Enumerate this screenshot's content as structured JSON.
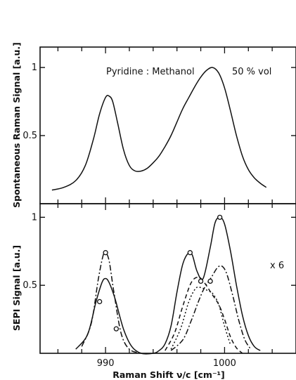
{
  "chart_data": [
    {
      "type": "line",
      "ylabel": "Spontaneous Raman Signal [a.u.]",
      "annotation": "Pyridine : Methanol",
      "annotation2": "50 % vol",
      "xlim": [
        984.5,
        1006
      ],
      "ylim": [
        0.0,
        1.15
      ],
      "yticks": [
        0.5,
        1
      ],
      "ytick_labels": [
        "0.5",
        "1"
      ],
      "series": [
        {
          "style": "solid",
          "x": [
            985.5,
            986.5,
            987.5,
            988.3,
            989.0,
            989.5,
            990.0,
            990.3,
            990.6,
            991.0,
            991.5,
            992.0,
            992.5,
            993.0,
            993.5,
            994.0,
            994.5,
            995.0,
            995.5,
            996.0,
            996.5,
            997.0,
            997.5,
            998.0,
            998.5,
            999.0,
            999.5,
            1000.0,
            1000.5,
            1001.0,
            1001.5,
            1002.0,
            1002.5,
            1003.0,
            1003.5
          ],
          "y": [
            0.1,
            0.12,
            0.17,
            0.28,
            0.48,
            0.66,
            0.78,
            0.79,
            0.75,
            0.6,
            0.4,
            0.28,
            0.24,
            0.24,
            0.26,
            0.3,
            0.35,
            0.42,
            0.5,
            0.6,
            0.7,
            0.78,
            0.86,
            0.93,
            0.98,
            1.0,
            0.96,
            0.85,
            0.68,
            0.5,
            0.35,
            0.25,
            0.19,
            0.15,
            0.12
          ]
        }
      ]
    },
    {
      "type": "line",
      "xlabel": "Raman Shift  ν/c  [cm⁻¹]",
      "ylabel": "SEPI Signal [a.u.]",
      "annotation": "x 6",
      "xlim": [
        984.5,
        1006
      ],
      "ylim": [
        0.0,
        1.1
      ],
      "xticks": [
        990,
        1000
      ],
      "xtick_labels": [
        "990",
        "1000"
      ],
      "yticks": [
        0.5,
        1
      ],
      "ytick_labels": [
        "0.5",
        "1"
      ],
      "series": [
        {
          "style": "solid",
          "x": [
            987.5,
            988.5,
            989.2,
            989.7,
            990.0,
            990.3,
            990.8,
            991.5,
            992.2,
            993.0,
            994.0,
            994.5,
            995.0,
            995.5,
            996.0,
            996.5,
            997.0,
            997.3,
            997.7,
            998.2,
            998.8,
            999.2,
            999.6,
            1000.0,
            1000.5,
            1001.0,
            1001.5,
            1002.0,
            1002.5,
            1003.0
          ],
          "y": [
            0.03,
            0.14,
            0.38,
            0.52,
            0.55,
            0.52,
            0.4,
            0.18,
            0.05,
            0.0,
            0.0,
            0.02,
            0.07,
            0.2,
            0.45,
            0.66,
            0.74,
            0.72,
            0.6,
            0.55,
            0.78,
            0.96,
            1.0,
            0.95,
            0.75,
            0.5,
            0.28,
            0.13,
            0.05,
            0.02
          ]
        },
        {
          "style": "dashdot",
          "x": [
            988.0,
            988.8,
            989.4,
            989.8,
            990.0,
            990.3,
            990.7,
            991.3,
            992.0,
            993.0
          ],
          "y": [
            0.05,
            0.22,
            0.55,
            0.72,
            0.74,
            0.68,
            0.45,
            0.15,
            0.03,
            0.0
          ]
        },
        {
          "style": "dashed",
          "x": [
            995.0,
            995.8,
            996.5,
            997.2,
            997.8,
            998.3,
            998.9,
            999.5,
            1000.0,
            1000.5,
            1001.0,
            1001.5
          ],
          "y": [
            0.02,
            0.15,
            0.35,
            0.52,
            0.56,
            0.52,
            0.44,
            0.36,
            0.25,
            0.12,
            0.04,
            0.0
          ]
        },
        {
          "style": "dashdot",
          "x": [
            995.5,
            996.5,
            997.2,
            997.8,
            998.3,
            998.9,
            999.4,
            999.8,
            1000.2,
            1000.7,
            1001.2,
            1001.7,
            1002.2
          ],
          "y": [
            0.02,
            0.1,
            0.24,
            0.38,
            0.48,
            0.56,
            0.63,
            0.64,
            0.58,
            0.42,
            0.24,
            0.1,
            0.03
          ]
        },
        {
          "style": "dotted",
          "x": [
            995.5,
            996.3,
            997.0,
            997.6,
            998.1,
            998.6,
            999.0,
            999.5,
            1000.0,
            1000.5
          ],
          "y": [
            0.03,
            0.18,
            0.38,
            0.48,
            0.48,
            0.46,
            0.44,
            0.36,
            0.2,
            0.06
          ]
        }
      ],
      "markers": {
        "x": [
          989.5,
          990.0,
          990.9,
          997.1,
          998.0,
          998.8,
          999.6
        ],
        "y": [
          0.38,
          0.74,
          0.18,
          0.74,
          0.53,
          0.53,
          1.0
        ]
      }
    }
  ]
}
